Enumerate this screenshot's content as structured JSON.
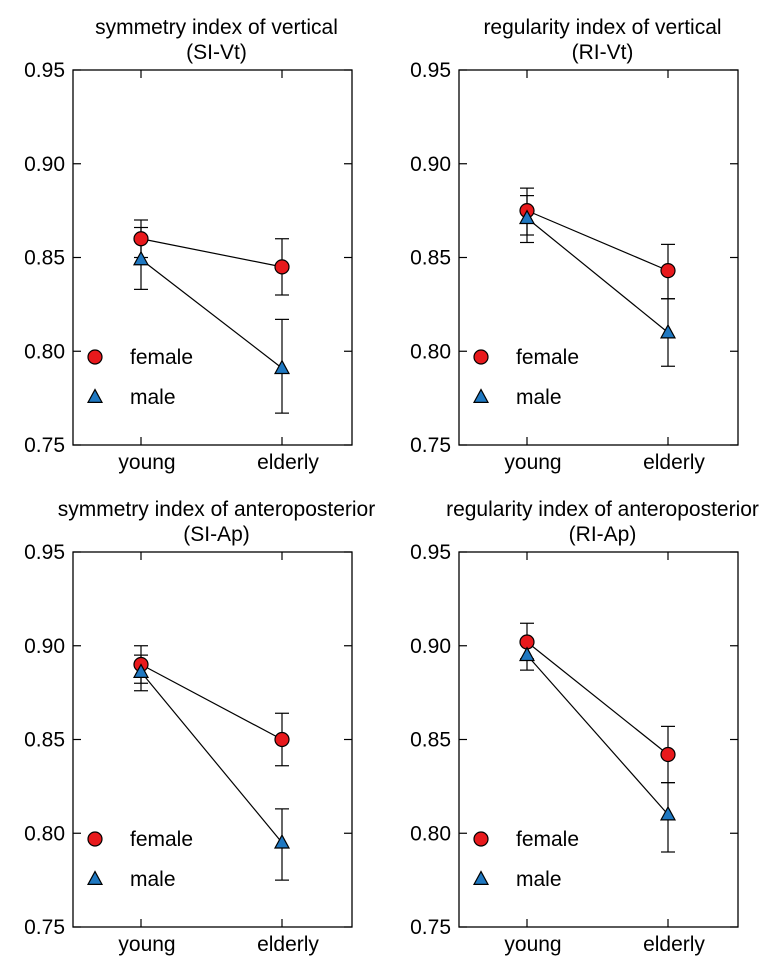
{
  "chart_data": [
    {
      "type": "line",
      "title": "symmetry index of vertical",
      "subtitle": "(SI-Vt)",
      "categories": [
        "young",
        "elderly"
      ],
      "ylim": [
        0.75,
        0.95
      ],
      "yticks": [
        "0.75",
        "0.80",
        "0.85",
        "0.90",
        "0.95"
      ],
      "legend_position": "bottom-left",
      "series": [
        {
          "name": "female",
          "marker": "circle",
          "color": "#e8191c",
          "values": [
            0.86,
            0.845
          ],
          "err_low": [
            0.85,
            0.83
          ],
          "err_high": [
            0.87,
            0.86
          ]
        },
        {
          "name": "male",
          "marker": "triangle",
          "color": "#1f78c1",
          "values": [
            0.849,
            0.791
          ],
          "err_low": [
            0.833,
            0.767
          ],
          "err_high": [
            0.866,
            0.817
          ]
        }
      ]
    },
    {
      "type": "line",
      "title": "regularity index of vertical",
      "subtitle": "(RI-Vt)",
      "categories": [
        "young",
        "elderly"
      ],
      "ylim": [
        0.75,
        0.95
      ],
      "yticks": [
        "0.75",
        "0.80",
        "0.85",
        "0.90",
        "0.95"
      ],
      "legend_position": "bottom-left",
      "series": [
        {
          "name": "female",
          "marker": "circle",
          "color": "#e8191c",
          "values": [
            0.875,
            0.843
          ],
          "err_low": [
            0.862,
            0.828
          ],
          "err_high": [
            0.887,
            0.857
          ]
        },
        {
          "name": "male",
          "marker": "triangle",
          "color": "#1f78c1",
          "values": [
            0.871,
            0.81
          ],
          "err_low": [
            0.858,
            0.792
          ],
          "err_high": [
            0.883,
            0.828
          ]
        }
      ]
    },
    {
      "type": "line",
      "title": "symmetry index of anteroposterior",
      "subtitle": "(SI-Ap)",
      "categories": [
        "young",
        "elderly"
      ],
      "ylim": [
        0.75,
        0.95
      ],
      "yticks": [
        "0.75",
        "0.80",
        "0.85",
        "0.90",
        "0.95"
      ],
      "legend_position": "bottom-left",
      "series": [
        {
          "name": "female",
          "marker": "circle",
          "color": "#e8191c",
          "values": [
            0.89,
            0.85
          ],
          "err_low": [
            0.88,
            0.836
          ],
          "err_high": [
            0.9,
            0.864
          ]
        },
        {
          "name": "male",
          "marker": "triangle",
          "color": "#1f78c1",
          "values": [
            0.886,
            0.795
          ],
          "err_low": [
            0.876,
            0.775
          ],
          "err_high": [
            0.895,
            0.813
          ]
        }
      ]
    },
    {
      "type": "line",
      "title": "regularity index of anteroposterior",
      "subtitle": "(RI-Ap)",
      "categories": [
        "young",
        "elderly"
      ],
      "ylim": [
        0.75,
        0.95
      ],
      "yticks": [
        "0.75",
        "0.80",
        "0.85",
        "0.90",
        "0.95"
      ],
      "legend_position": "bottom-left",
      "series": [
        {
          "name": "female",
          "marker": "circle",
          "color": "#e8191c",
          "values": [
            0.902,
            0.842
          ],
          "err_low": [
            0.893,
            0.827
          ],
          "err_high": [
            0.912,
            0.857
          ]
        },
        {
          "name": "male",
          "marker": "triangle",
          "color": "#1f78c1",
          "values": [
            0.895,
            0.81
          ],
          "err_low": [
            0.887,
            0.79
          ],
          "err_high": [
            0.903,
            0.827
          ]
        }
      ]
    }
  ]
}
